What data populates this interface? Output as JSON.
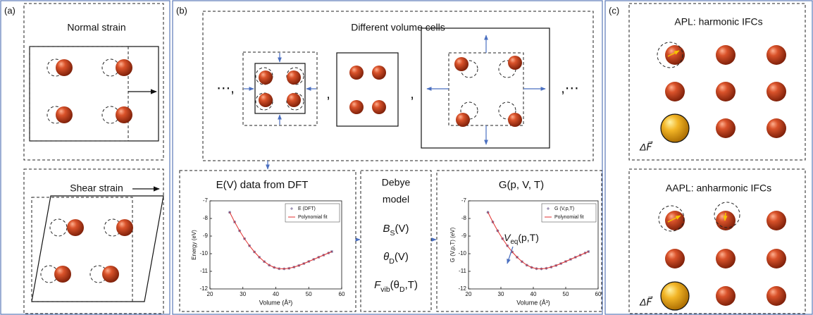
{
  "panel_a": {
    "label": "(a)",
    "normal_title": "Normal strain",
    "shear_title": "Shear strain"
  },
  "panel_b": {
    "label": "(b)",
    "cells_title": "Different volume cells",
    "separators": [
      "⋯,",
      ",",
      ",",
      ",⋯"
    ],
    "debye_title": [
      "Debye",
      "model"
    ],
    "formulas": [
      [
        {
          "text": "B"
        },
        {
          "text": "S",
          "sub": true
        },
        {
          "text": "(V)"
        }
      ],
      [
        {
          "text": "θ"
        },
        {
          "text": "D",
          "sub": true
        },
        {
          "text": "(V)"
        }
      ],
      [
        {
          "text": "F"
        },
        {
          "text": "vib",
          "sub": true
        },
        {
          "text": "(θ"
        },
        {
          "text": "D",
          "sub": true
        },
        {
          "text": ",T)"
        }
      ]
    ]
  },
  "panel_c": {
    "label": "(c)",
    "harmonic_title": "APL: harmonic IFCs",
    "anharmonic_title": "AAPL: anharmonic IFCs",
    "force_label": "ΔF⃗"
  },
  "chart_data": [
    {
      "type": "scatter-line",
      "title": "E(V) data from DFT",
      "xlabel": "Volume (Å³)",
      "ylabel": "Energy (eV)",
      "xlim": [
        20,
        60
      ],
      "xticks": [
        20,
        30,
        40,
        50,
        60
      ],
      "ylim": [
        -12,
        -7
      ],
      "yticks": [
        -7,
        -8,
        -9,
        -10,
        -11,
        -12
      ],
      "x": [
        26,
        27.5,
        29,
        30.5,
        32,
        33.5,
        35,
        36.5,
        38,
        39.5,
        41,
        42.5,
        44,
        45.5,
        47,
        48.5,
        50,
        51.5,
        53,
        54.5,
        56,
        57
      ],
      "series": [
        {
          "name": "E (DFT)",
          "color": "#6a5a8a",
          "marker": "star",
          "values": [
            -7.65,
            -8.2,
            -8.7,
            -9.15,
            -9.55,
            -9.9,
            -10.2,
            -10.45,
            -10.65,
            -10.78,
            -10.85,
            -10.86,
            -10.83,
            -10.76,
            -10.67,
            -10.56,
            -10.44,
            -10.32,
            -10.2,
            -10.08,
            -9.96,
            -9.88
          ]
        },
        {
          "name": "Polynomial fit",
          "color": "#e03030",
          "marker": "line",
          "values": [
            -7.65,
            -8.2,
            -8.7,
            -9.15,
            -9.55,
            -9.9,
            -10.2,
            -10.45,
            -10.65,
            -10.78,
            -10.85,
            -10.86,
            -10.83,
            -10.76,
            -10.67,
            -10.56,
            -10.44,
            -10.32,
            -10.2,
            -10.08,
            -9.96,
            -9.88
          ]
        }
      ]
    },
    {
      "type": "scatter-line",
      "title": "G(p, V, T)",
      "xlabel": "Volume (Å³)",
      "ylabel": "G (V,p,T) (eV)",
      "xlim": [
        20,
        60
      ],
      "xticks": [
        20,
        30,
        40,
        50,
        60
      ],
      "ylim": [
        -12,
        -7
      ],
      "yticks": [
        -7,
        -8,
        -9,
        -10,
        -11,
        -12
      ],
      "x": [
        26,
        27.5,
        29,
        30.5,
        32,
        33.5,
        35,
        36.5,
        38,
        39.5,
        41,
        42.5,
        44,
        45.5,
        47,
        48.5,
        50,
        51.5,
        53,
        54.5,
        56,
        57
      ],
      "annotation": [
        {
          "text": "V"
        },
        {
          "text": "eq",
          "sub": true
        },
        {
          "text": "(p,T)"
        }
      ],
      "series": [
        {
          "name": "G (V,p,T)",
          "color": "#6a5a8a",
          "marker": "star",
          "values": [
            -7.65,
            -8.2,
            -8.7,
            -9.15,
            -9.55,
            -9.9,
            -10.2,
            -10.45,
            -10.65,
            -10.78,
            -10.85,
            -10.86,
            -10.83,
            -10.76,
            -10.67,
            -10.56,
            -10.44,
            -10.32,
            -10.2,
            -10.08,
            -9.96,
            -9.88
          ]
        },
        {
          "name": "Polynomial fit",
          "color": "#e03030",
          "marker": "line",
          "values": [
            -7.65,
            -8.2,
            -8.7,
            -9.15,
            -9.55,
            -9.9,
            -10.2,
            -10.45,
            -10.65,
            -10.78,
            -10.85,
            -10.86,
            -10.83,
            -10.76,
            -10.67,
            -10.56,
            -10.44,
            -10.32,
            -10.2,
            -10.08,
            -9.96,
            -9.88
          ]
        }
      ]
    }
  ]
}
